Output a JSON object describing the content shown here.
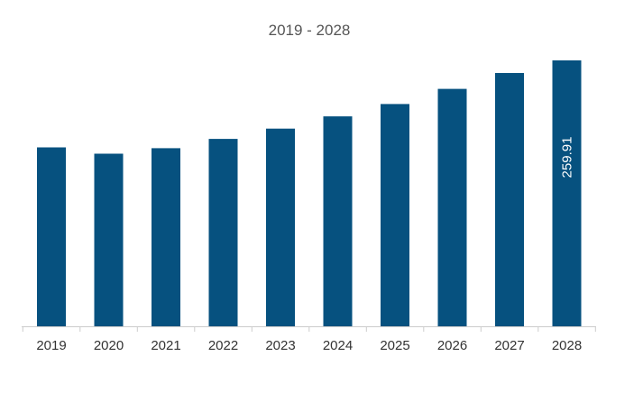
{
  "chart_data": {
    "type": "bar",
    "title": "2019 - 2028",
    "xlabel": "",
    "ylabel": "",
    "categories": [
      "2019",
      "2020",
      "2021",
      "2022",
      "2023",
      "2024",
      "2025",
      "2026",
      "2027",
      "2028"
    ],
    "series": [
      {
        "values": [
          174.9,
          168.7,
          174.1,
          183.2,
          193.2,
          205.2,
          217.3,
          232.1,
          247.6,
          259.91
        ],
        "data_labels": [
          "",
          "",
          "",
          "",
          "",
          "",
          "",
          "",
          "",
          "259.91"
        ]
      }
    ],
    "ylim": [
      0,
      270
    ],
    "grid": false,
    "legend": "none",
    "bar_color": "#06517F",
    "axis_color": "#cccccc"
  }
}
